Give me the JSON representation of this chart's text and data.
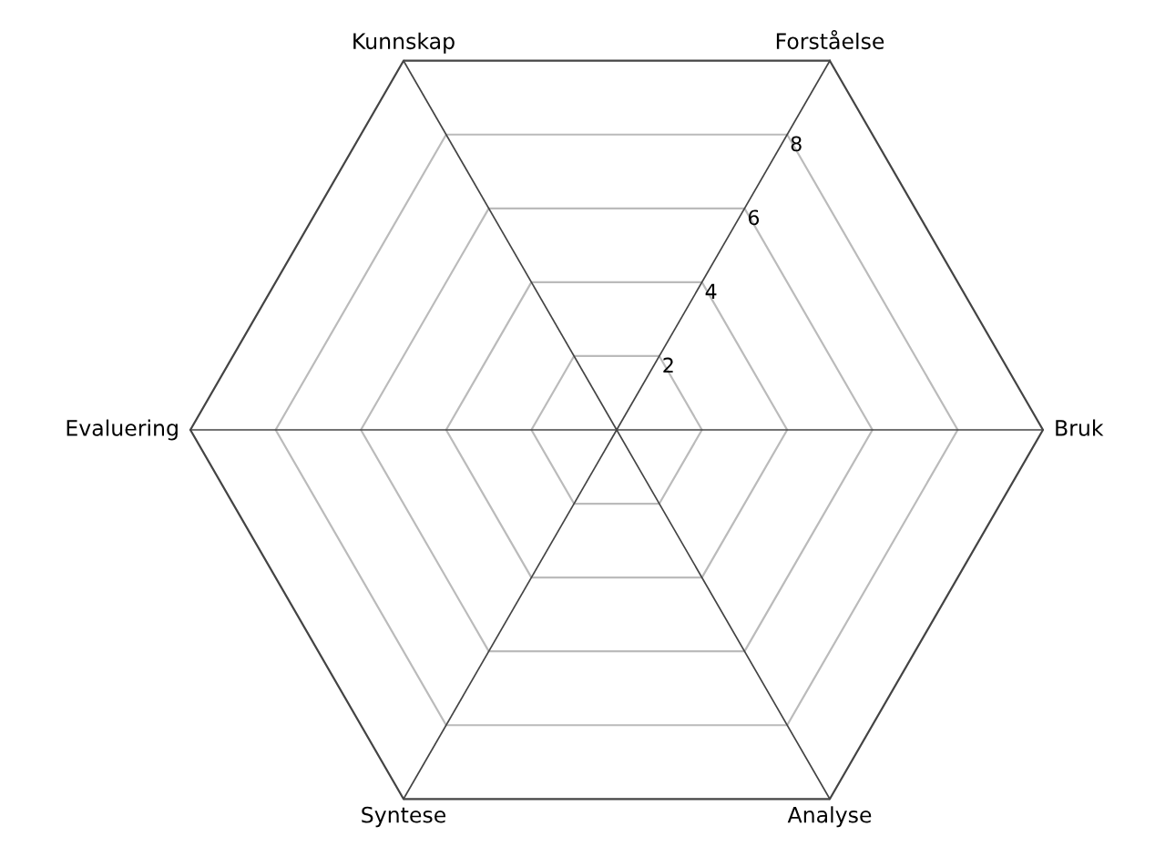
{
  "chart_data": {
    "type": "radar",
    "categories": [
      "Forståelse",
      "Bruk",
      "Analyse",
      "Syntese",
      "Evaluering",
      "Kunnskap"
    ],
    "ylim": [
      0,
      10
    ],
    "yticks": [
      2,
      4,
      6,
      8
    ],
    "grid": true
  }
}
